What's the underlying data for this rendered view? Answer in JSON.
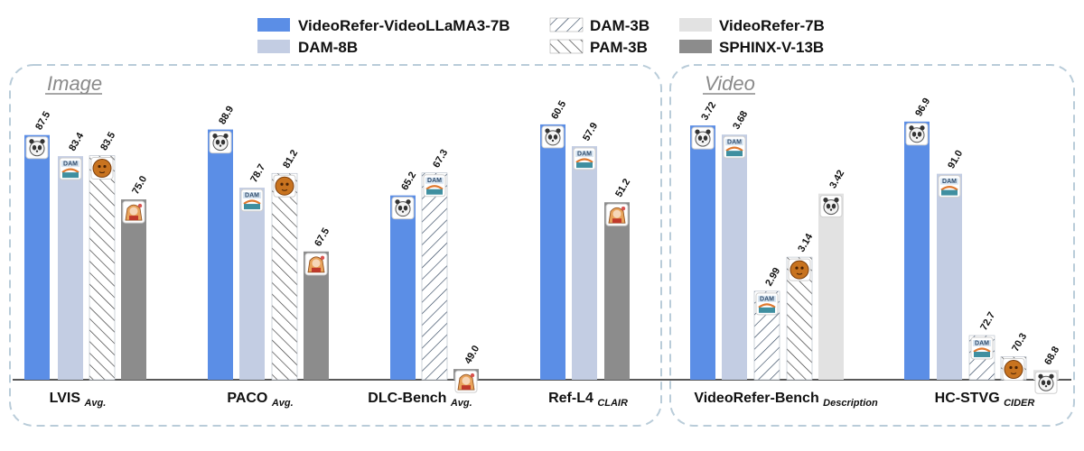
{
  "legend": {
    "videorefer_videollama3_7b": "VideoRefer-VideoLLaMA3-7B",
    "dam_8b": "DAM-8B",
    "dam_3b": "DAM-3B",
    "pam_3b": "PAM-3B",
    "videorefer_7b": "VideoRefer-7B",
    "sphinx_v_13b": "SPHINX-V-13B"
  },
  "panels": {
    "image_title": "Image",
    "video_title": "Video"
  },
  "colors": {
    "videorefer_videollama3_7b": "#5b8ee6",
    "dam_8b": "#c3cde3",
    "videorefer_7b": "#e2e2e2",
    "sphinx_v_13b": "#8c8c8c",
    "hatch_bg": "#ffffff",
    "dam_3b_hatch": "#1f3550",
    "pam_3b_hatch": "#333333"
  },
  "chart_data": {
    "type": "bar",
    "title": "",
    "xlabel": "",
    "ylabel": "",
    "grid": false,
    "legend_position": "top",
    "categories": [
      {
        "main": "LVIS",
        "sub": "Avg.",
        "panel": "Image"
      },
      {
        "main": "PACO",
        "sub": "Avg.",
        "panel": "Image"
      },
      {
        "main": "DLC-Bench",
        "sub": "Avg.",
        "panel": "Image"
      },
      {
        "main": "Ref-L4",
        "sub": "CLAIR",
        "panel": "Image"
      },
      {
        "main": "VideoRefer-Bench",
        "sub": "Description",
        "panel": "Video"
      },
      {
        "main": "HC-STVG",
        "sub": "CIDER",
        "panel": "Video"
      }
    ],
    "groups": [
      {
        "category": "LVIS",
        "ymin": 40,
        "ymax": 92,
        "bars": [
          {
            "series": "VideoRefer-VideoLLaMA3-7B",
            "value": 87.5,
            "label": "87.5",
            "icon": "panda"
          },
          {
            "series": "DAM-8B",
            "value": 83.4,
            "label": "83.4",
            "icon": "dam"
          },
          {
            "series": "PAM-3B",
            "value": 83.5,
            "label": "83.5",
            "icon": "pam"
          },
          {
            "series": "SPHINX-V-13B",
            "value": 75.0,
            "label": "75.0",
            "icon": "sphinx"
          }
        ]
      },
      {
        "category": "PACO",
        "ymin": 45,
        "ymax": 92,
        "bars": [
          {
            "series": "VideoRefer-VideoLLaMA3-7B",
            "value": 88.9,
            "label": "88.9",
            "icon": "panda"
          },
          {
            "series": "DAM-8B",
            "value": 78.7,
            "label": "78.7",
            "icon": "dam"
          },
          {
            "series": "PAM-3B",
            "value": 81.2,
            "label": "81.2",
            "icon": "pam"
          },
          {
            "series": "SPHINX-V-13B",
            "value": 67.5,
            "label": "67.5",
            "icon": "sphinx"
          }
        ]
      },
      {
        "category": "DLC-Bench",
        "ymin": 48,
        "ymax": 73,
        "bars": [
          {
            "series": "VideoRefer-VideoLLaMA3-7B",
            "value": 65.2,
            "label": "65.2",
            "icon": "panda"
          },
          {
            "series": "DAM-3B",
            "value": 67.3,
            "label": "67.3",
            "icon": "dam"
          },
          {
            "series": "SPHINX-V-13B",
            "value": 49.0,
            "label": "49.0",
            "icon": "sphinx"
          }
        ]
      },
      {
        "category": "Ref-L4",
        "ymin": 30,
        "ymax": 62,
        "bars": [
          {
            "series": "VideoRefer-VideoLLaMA3-7B",
            "value": 60.5,
            "label": "60.5",
            "icon": "panda"
          },
          {
            "series": "DAM-8B",
            "value": 57.9,
            "label": "57.9",
            "icon": "dam"
          },
          {
            "series": "SPHINX-V-13B",
            "value": 51.2,
            "label": "51.2",
            "icon": "sphinx"
          }
        ]
      },
      {
        "category": "VideoRefer-Bench",
        "ymin": 2.6,
        "ymax": 3.78,
        "bars": [
          {
            "series": "VideoRefer-VideoLLaMA3-7B",
            "value": 3.72,
            "label": "3.72",
            "icon": "panda"
          },
          {
            "series": "DAM-8B",
            "value": 3.68,
            "label": "3.68",
            "icon": "dam"
          },
          {
            "series": "DAM-3B",
            "value": 2.99,
            "label": "2.99",
            "icon": "dam"
          },
          {
            "series": "PAM-3B",
            "value": 3.14,
            "label": "3.14",
            "icon": "pam"
          },
          {
            "series": "VideoRefer-7B",
            "value": 3.42,
            "label": "3.42",
            "icon": "panda"
          }
        ]
      },
      {
        "category": "HC-STVG",
        "ymin": 67.7,
        "ymax": 98.0,
        "bars": [
          {
            "series": "VideoRefer-VideoLLaMA3-7B",
            "value": 96.9,
            "label": "96.9",
            "icon": "panda"
          },
          {
            "series": "DAM-8B",
            "value": 91.0,
            "label": "91.0",
            "icon": "dam"
          },
          {
            "series": "DAM-3B",
            "value": 72.7,
            "label": "72.7",
            "icon": "dam"
          },
          {
            "series": "PAM-3B",
            "value": 70.3,
            "label": "70.3",
            "icon": "pam"
          },
          {
            "series": "VideoRefer-7B",
            "value": 68.8,
            "label": "68.8",
            "icon": "panda"
          }
        ]
      }
    ]
  }
}
